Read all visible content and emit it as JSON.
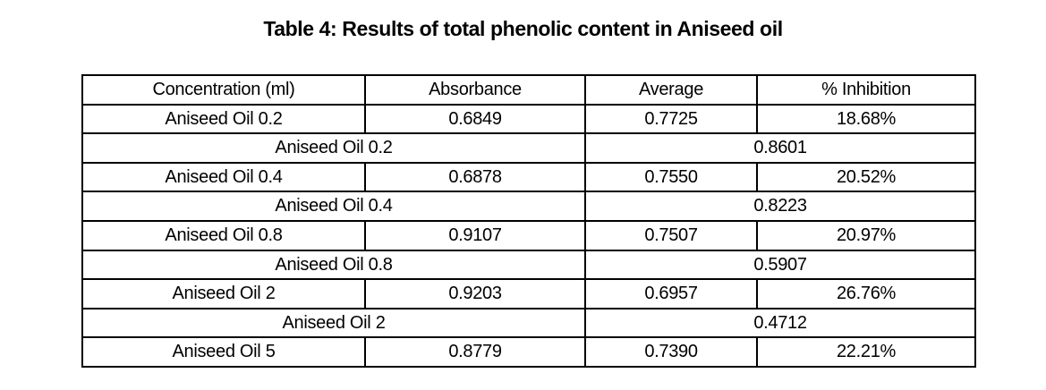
{
  "title": "Table 4: Results of total phenolic content in Aniseed oil",
  "colors": {
    "background": "#ffffff",
    "border": "#000000",
    "text": "#000000"
  },
  "table": {
    "headers": [
      "Concentration (ml)",
      "Absorbance",
      "Average",
      "% Inhibition"
    ],
    "rows": [
      {
        "type": "full",
        "cells": [
          "Aniseed Oil 0.2",
          "0.6849",
          "0.7725",
          "18.68%"
        ]
      },
      {
        "type": "merged",
        "cells": [
          "Aniseed Oil 0.2",
          "0.8601"
        ]
      },
      {
        "type": "full",
        "cells": [
          "Aniseed Oil 0.4",
          "0.6878",
          "0.7550",
          "20.52%"
        ]
      },
      {
        "type": "merged",
        "cells": [
          "Aniseed Oil 0.4",
          "0.8223"
        ]
      },
      {
        "type": "full",
        "cells": [
          "Aniseed Oil 0.8",
          "0.9107",
          "0.7507",
          "20.97%"
        ]
      },
      {
        "type": "merged",
        "cells": [
          "Aniseed Oil 0.8",
          "0.5907"
        ]
      },
      {
        "type": "full",
        "cells": [
          "Aniseed Oil 2",
          "0.9203",
          "0.6957",
          "26.76%"
        ]
      },
      {
        "type": "merged",
        "cells": [
          "Aniseed Oil 2",
          "0.4712"
        ]
      },
      {
        "type": "full",
        "cells": [
          "Aniseed Oil 5",
          "0.8779",
          "0.7390",
          "22.21%"
        ]
      }
    ]
  },
  "chart_data": {
    "type": "table",
    "title": "Table 4: Results of total phenolic content in Aniseed oil",
    "columns": [
      "Concentration (ml)",
      "Absorbance",
      "Average",
      "% Inhibition"
    ],
    "samples": [
      {
        "concentration": "Aniseed Oil 0.2",
        "absorbance_a": 0.6849,
        "absorbance_b": 0.8601,
        "average": 0.7725,
        "inhibition_pct": 18.68
      },
      {
        "concentration": "Aniseed Oil 0.4",
        "absorbance_a": 0.6878,
        "absorbance_b": 0.8223,
        "average": 0.755,
        "inhibition_pct": 20.52
      },
      {
        "concentration": "Aniseed Oil 0.8",
        "absorbance_a": 0.9107,
        "absorbance_b": 0.5907,
        "average": 0.7507,
        "inhibition_pct": 20.97
      },
      {
        "concentration": "Aniseed Oil 2",
        "absorbance_a": 0.9203,
        "absorbance_b": 0.4712,
        "average": 0.6957,
        "inhibition_pct": 26.76
      },
      {
        "concentration": "Aniseed Oil 5",
        "absorbance_a": 0.8779,
        "average": 0.739,
        "inhibition_pct": 22.21
      }
    ]
  }
}
